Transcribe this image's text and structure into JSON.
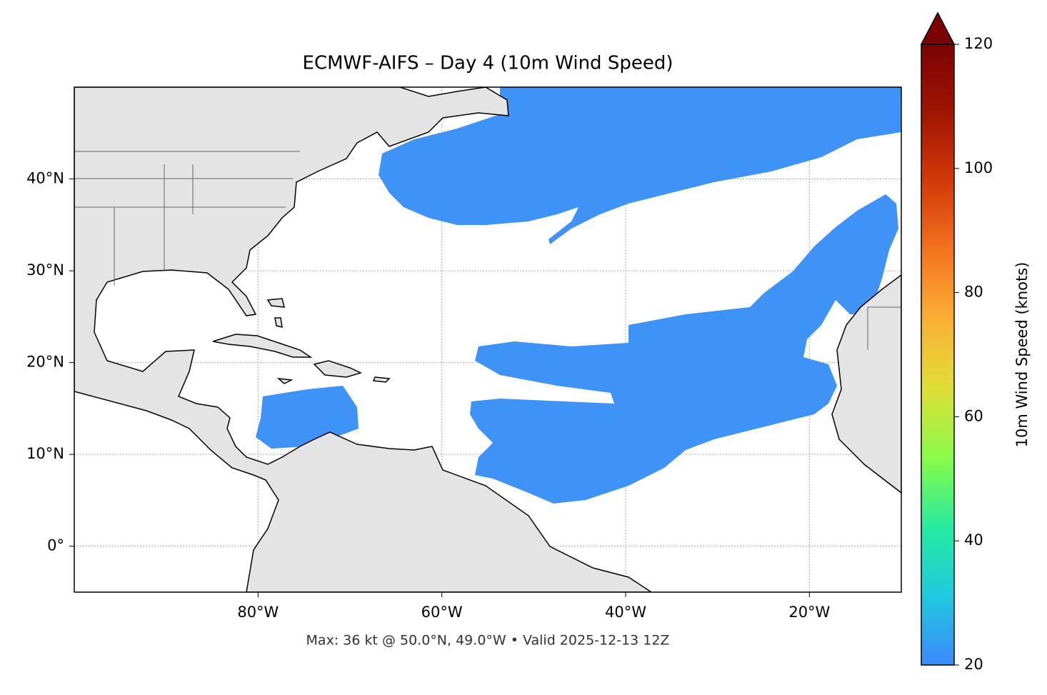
{
  "chart_data": {
    "type": "map",
    "title": "ECMWF-AIFS – Day 4 (10m Wind Speed)",
    "subtitle": "Max: 36 kt @ 50.0°N, 49.0°W • Valid 2025-12-13 12Z",
    "xlim": [
      -100,
      -10
    ],
    "ylim": [
      -5,
      50
    ],
    "xticks": [
      {
        "value": -80,
        "label": "80°W"
      },
      {
        "value": -60,
        "label": "60°W"
      },
      {
        "value": -40,
        "label": "40°W"
      },
      {
        "value": -20,
        "label": "20°W"
      }
    ],
    "yticks": [
      {
        "value": 0,
        "label": "0°"
      },
      {
        "value": 10,
        "label": "10°N"
      },
      {
        "value": 20,
        "label": "20°N"
      },
      {
        "value": 30,
        "label": "30°N"
      },
      {
        "value": 40,
        "label": "40°N"
      }
    ],
    "grid": true,
    "colorbar": {
      "label": "10m Wind Speed (knots)",
      "lim": [
        20,
        120
      ],
      "ticks": [
        20,
        40,
        60,
        80,
        100,
        120
      ],
      "colors": [
        "#3d88fb",
        "#1fc9de",
        "#26eaa0",
        "#8afb4a",
        "#dede37",
        "#fbb034",
        "#f3731f",
        "#d23b09",
        "#a01504",
        "#7a0403"
      ]
    }
  }
}
